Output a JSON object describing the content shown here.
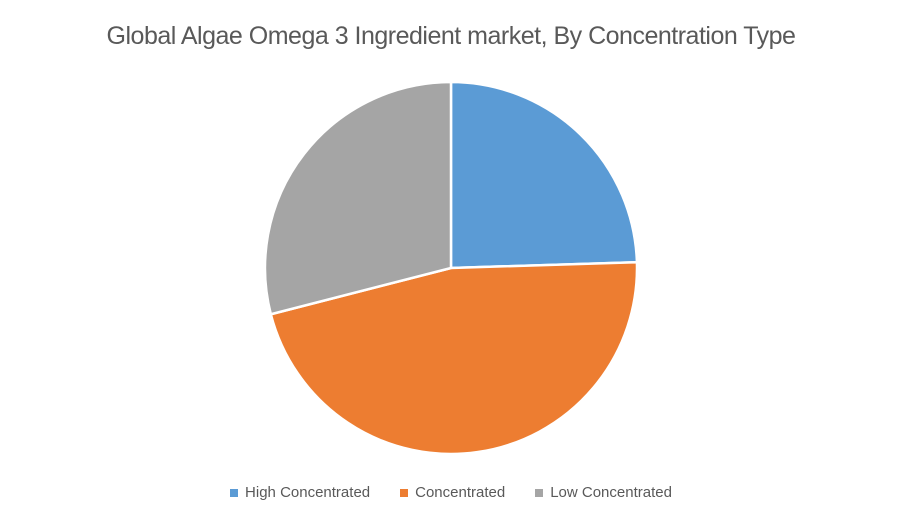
{
  "chart_data": {
    "type": "pie",
    "title": "Global Algae Omega 3 Ingredient market, By Concentration Type",
    "slices": [
      {
        "label": "High Concentrated",
        "value": 24.5,
        "color": "#5B9BD5"
      },
      {
        "label": "Concentrated",
        "value": 46.5,
        "color": "#ED7D31"
      },
      {
        "label": "Low Concentrated",
        "value": 29.0,
        "color": "#A5A5A5"
      }
    ],
    "legend_position": "bottom",
    "start_angle": "12 o'clock",
    "direction": "clockwise"
  }
}
